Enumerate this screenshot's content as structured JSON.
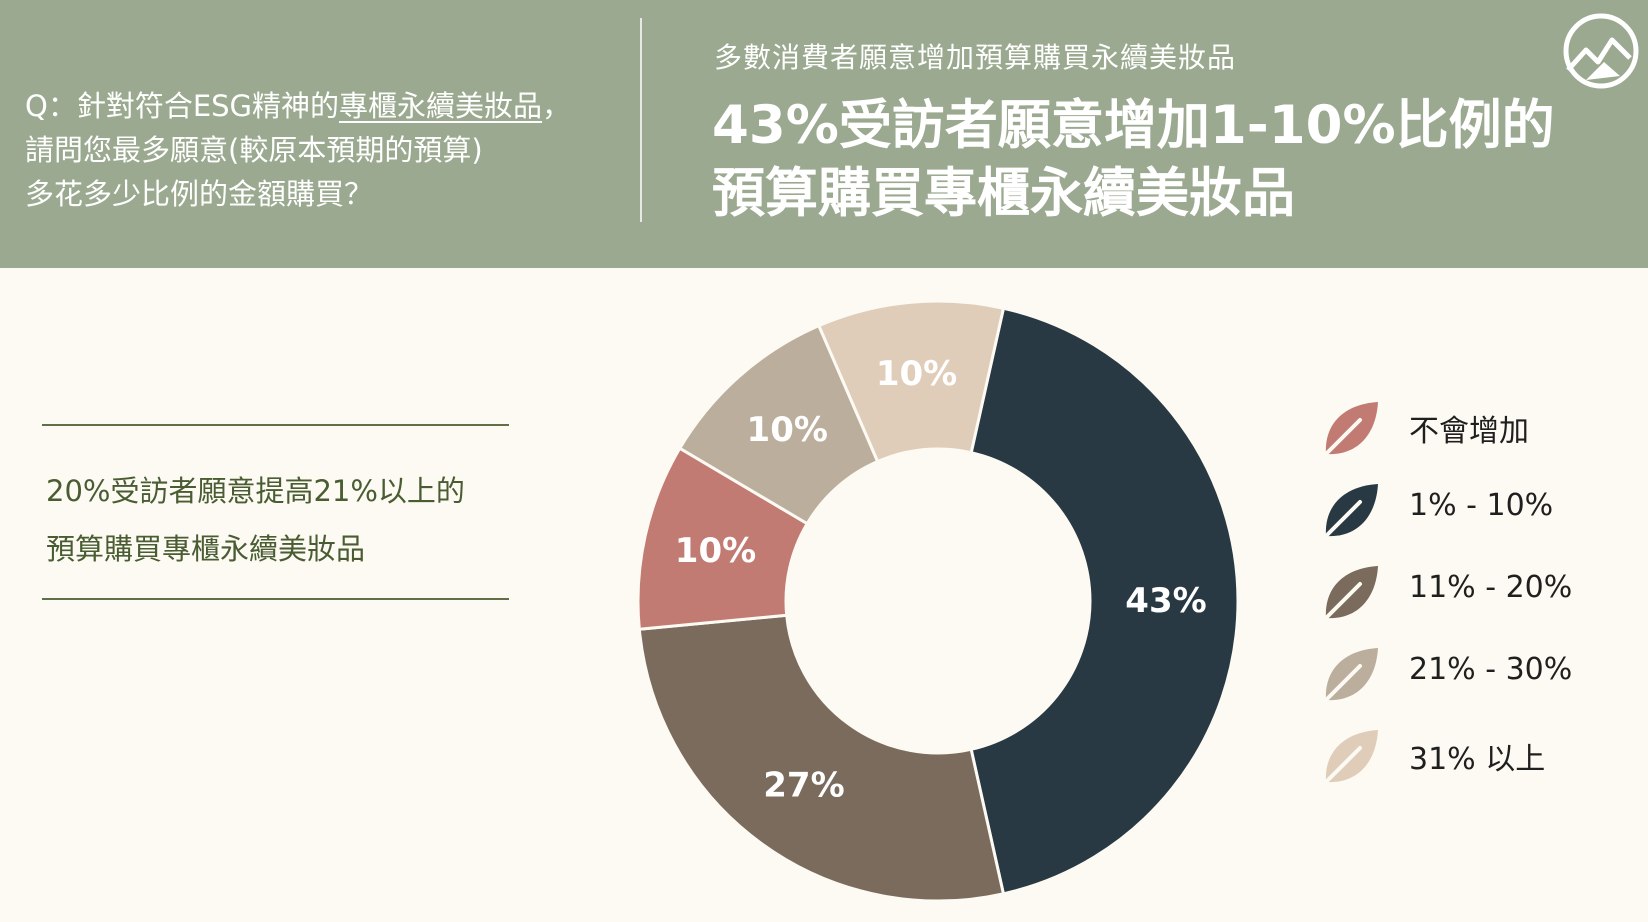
{
  "header": {
    "question_prefix": "Q：針對符合ESG精神的",
    "question_emphasis": "專櫃永續美妝品",
    "question_suffix": "，",
    "question_line2": "請問您最多願意(較原本預期的預算)",
    "question_line3": "多花多少比例的金額購買？",
    "subtitle": "多數消費者願意增加預算購買永續美妝品",
    "title_line1": "43%受訪者願意增加1-10%比例的",
    "title_line2": "預算購買專櫃永續美妝品"
  },
  "callout": {
    "line1": "20%受訪者願意提高21%以上的",
    "line2": "預算購買專櫃永續美妝品"
  },
  "colors": {
    "header_bg": "#9aa98f",
    "page_bg": "#fcfaf2"
  },
  "chart_data": {
    "type": "pie",
    "donut": true,
    "start": "top",
    "direction": "clockwise",
    "legend_position": "right",
    "categories": [
      "不會增加",
      "1% - 10%",
      "11% - 20%",
      "21% - 30%",
      "31% 以上"
    ],
    "values": [
      10,
      43,
      27,
      10,
      10
    ],
    "data_labels": [
      "10%",
      "43%",
      "27%",
      "10%",
      "10%"
    ],
    "colors": [
      "#c27b73",
      "#293944",
      "#7a6b5d",
      "#bcae9c",
      "#e0cdb9"
    ],
    "slice_order": [
      1,
      2,
      0,
      3,
      4
    ]
  }
}
